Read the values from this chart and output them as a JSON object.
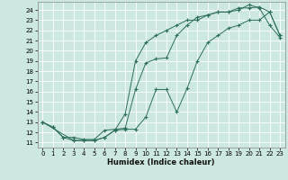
{
  "title": "",
  "xlabel": "Humidex (Indice chaleur)",
  "background_color": "#cce8e0",
  "grid_color": "#ffffff",
  "line_color": "#2e6e5e",
  "xlim": [
    -0.5,
    23.5
  ],
  "ylim": [
    10.5,
    24.8
  ],
  "xticks": [
    0,
    1,
    2,
    3,
    4,
    5,
    6,
    7,
    8,
    9,
    10,
    11,
    12,
    13,
    14,
    15,
    16,
    17,
    18,
    19,
    20,
    21,
    22,
    23
  ],
  "yticks": [
    11,
    12,
    13,
    14,
    15,
    16,
    17,
    18,
    19,
    20,
    21,
    22,
    23,
    24
  ],
  "curve1_x": [
    0,
    1,
    2,
    3,
    4,
    5,
    6,
    7,
    8,
    9,
    10,
    11,
    12,
    13,
    14,
    15,
    16,
    17,
    18,
    19,
    20,
    21,
    22,
    23
  ],
  "curve1_y": [
    13,
    12.5,
    11.5,
    11.2,
    11.2,
    11.2,
    11.5,
    12.2,
    12.3,
    12.3,
    13.5,
    16.2,
    16.2,
    14.0,
    16.3,
    19.0,
    20.8,
    21.5,
    22.2,
    22.5,
    23.0,
    23.0,
    23.8,
    21.5
  ],
  "curve2_x": [
    0,
    1,
    2,
    3,
    4,
    5,
    6,
    7,
    8,
    9,
    10,
    11,
    12,
    13,
    14,
    15,
    16,
    17,
    18,
    19,
    20,
    21,
    22,
    23
  ],
  "curve2_y": [
    13,
    12.5,
    11.5,
    11.5,
    11.3,
    11.3,
    12.2,
    12.3,
    12.4,
    16.2,
    18.8,
    19.2,
    19.3,
    21.5,
    22.5,
    23.3,
    23.5,
    23.8,
    23.8,
    24.2,
    24.2,
    24.3,
    23.8,
    21.5
  ],
  "curve3_x": [
    0,
    3,
    4,
    5,
    6,
    7,
    8,
    9,
    10,
    11,
    12,
    13,
    14,
    15,
    16,
    17,
    18,
    19,
    20,
    21,
    22,
    23
  ],
  "curve3_y": [
    13,
    11.2,
    11.2,
    11.2,
    11.5,
    12.2,
    13.8,
    19.0,
    20.8,
    21.5,
    22.0,
    22.5,
    23.0,
    23.0,
    23.5,
    23.8,
    23.8,
    24.0,
    24.5,
    24.2,
    22.5,
    21.3
  ]
}
